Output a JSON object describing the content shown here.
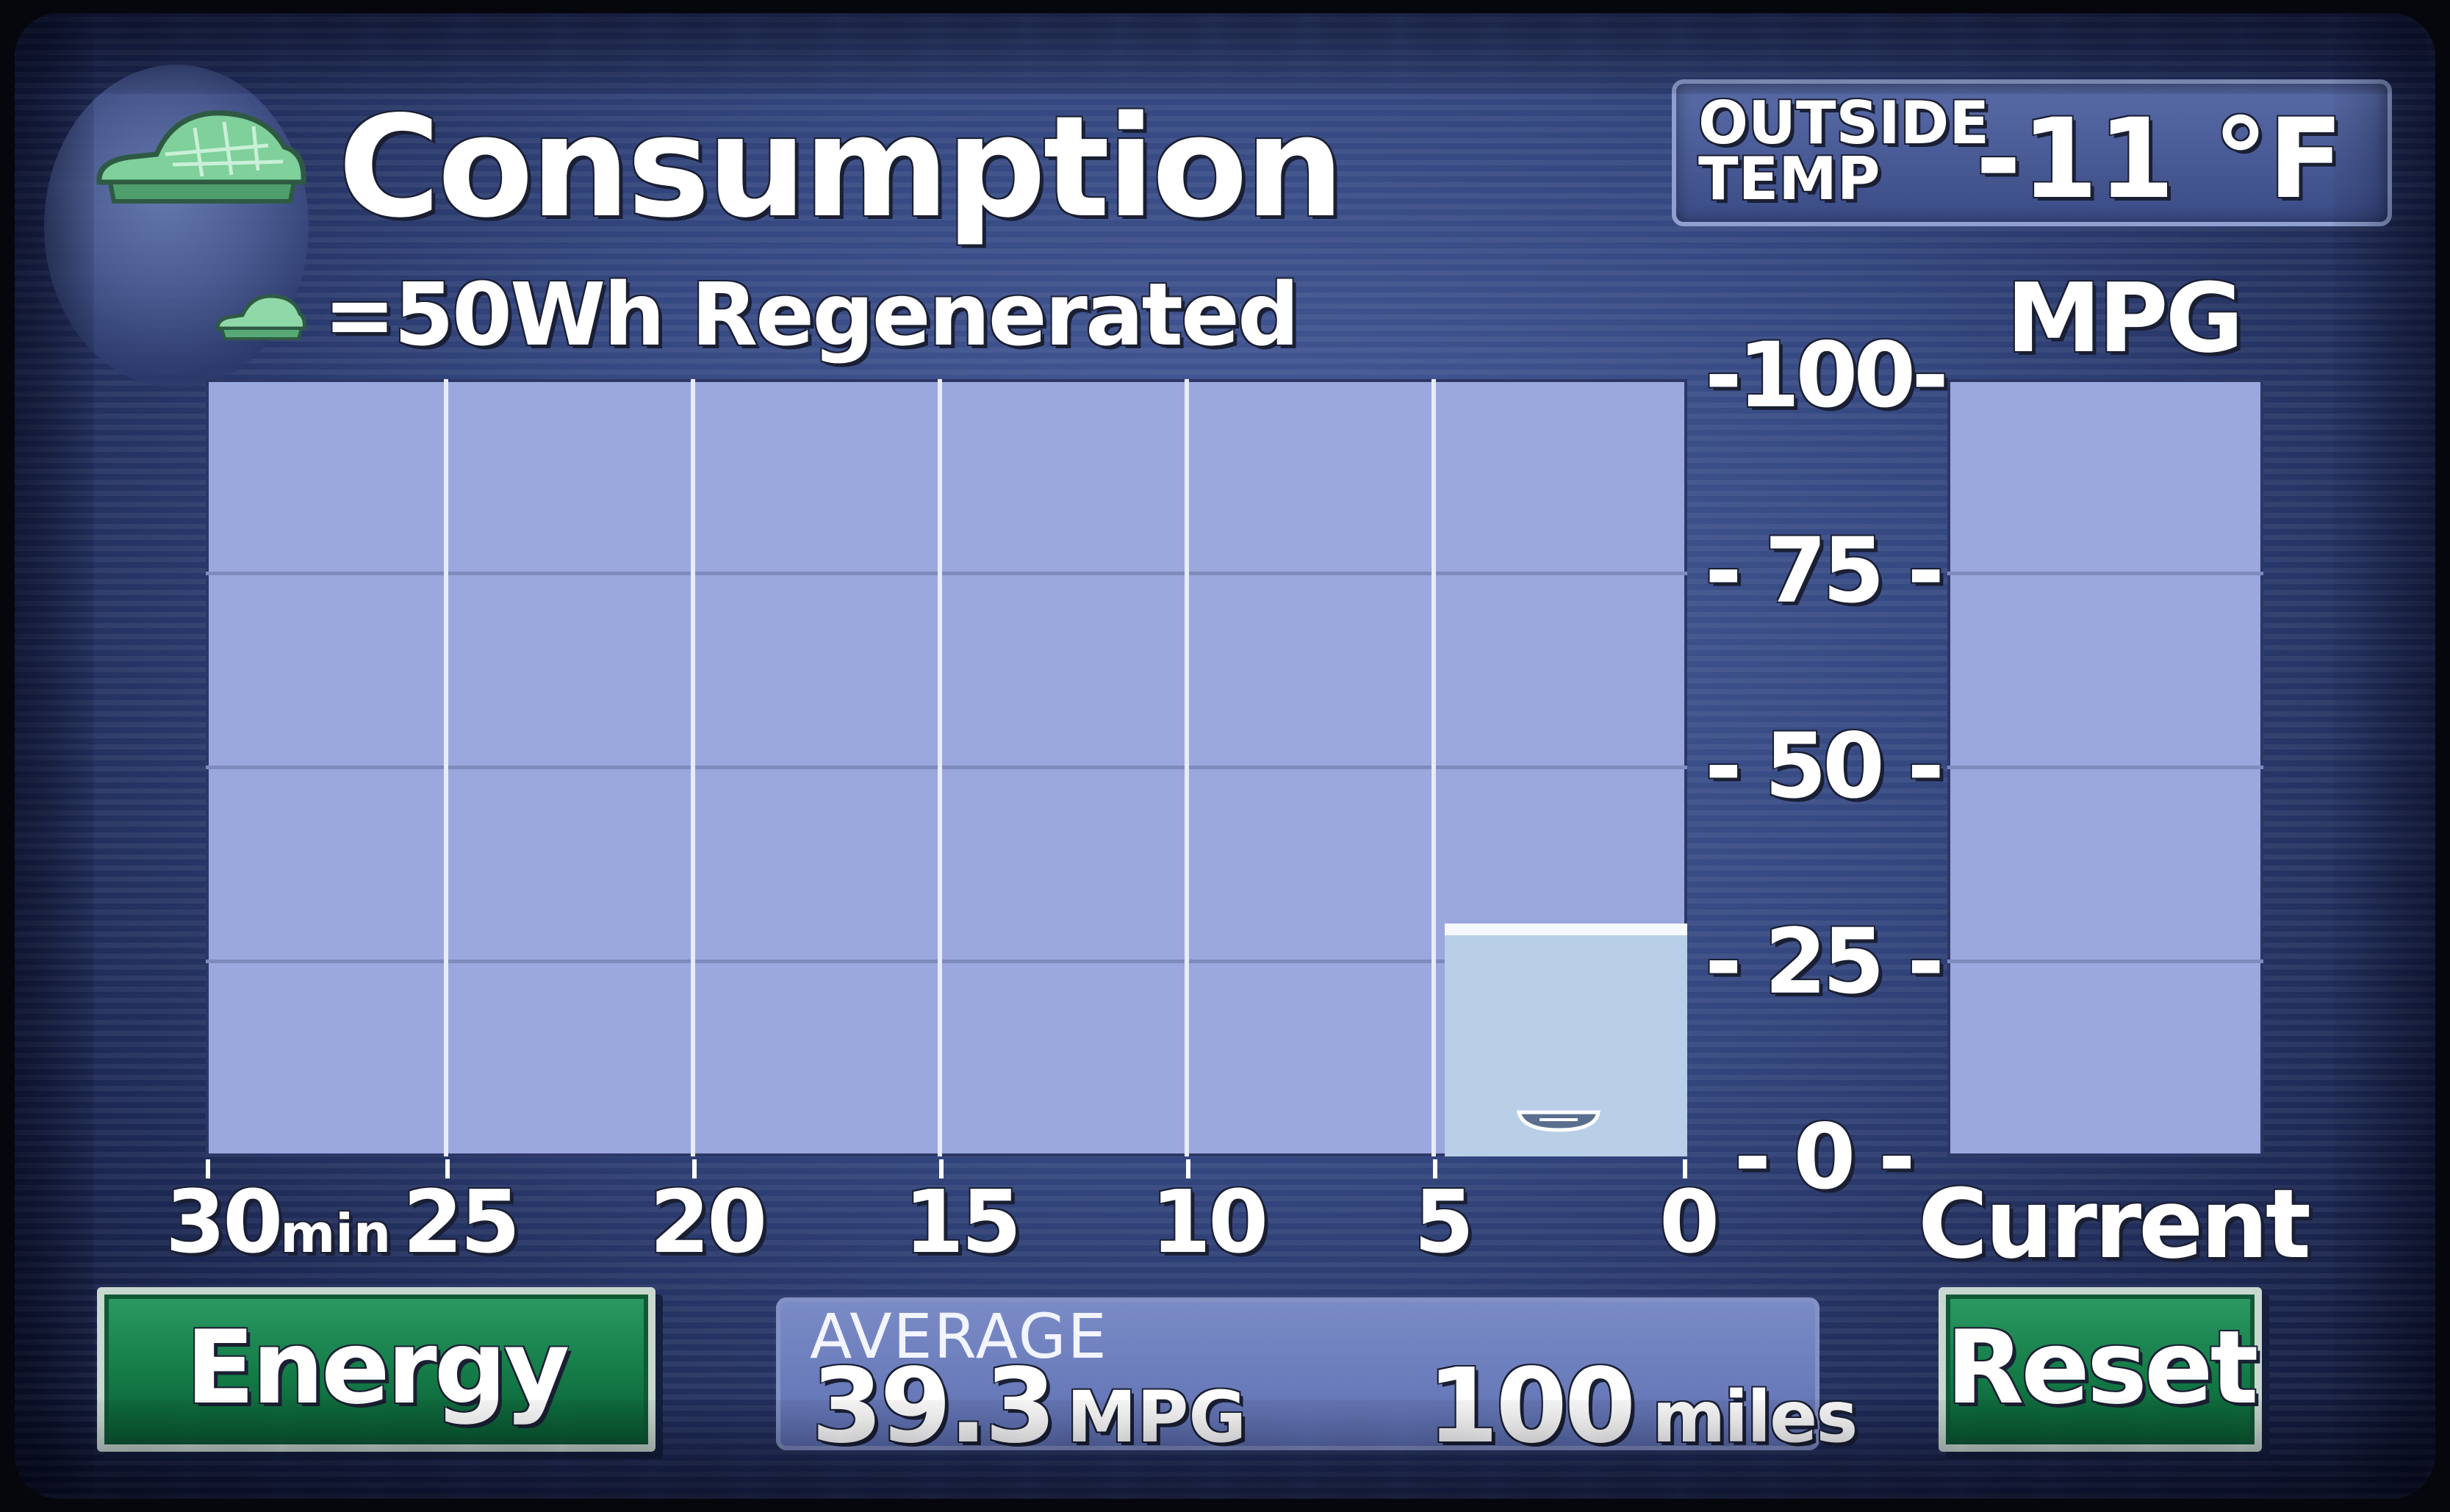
{
  "header": {
    "title": "Consumption",
    "legend_text": "=50Wh Regenerated",
    "icon": "leaf-car-icon"
  },
  "outside_temp": {
    "label": "OUTSIDE\nTEMP",
    "value": "-11 °F"
  },
  "mpg_axis": {
    "label": "MPG",
    "ticks": [
      "-100-",
      "- 75 -",
      "- 50 -",
      "- 25 -",
      "- 0 -"
    ]
  },
  "time_axis": {
    "ticks": [
      "30",
      "25",
      "20",
      "15",
      "10",
      "5",
      "0"
    ],
    "unit": "min"
  },
  "current_label": "Current",
  "buttons": {
    "energy": "Energy",
    "reset": "Reset"
  },
  "average": {
    "label": "AVERAGE",
    "mpg_value": "39.3",
    "mpg_unit": "MPG",
    "distance_value": "100",
    "distance_unit": "miles"
  },
  "colors": {
    "chart_bg": "#9ba8dd",
    "bar_fill": "#b9cfe8",
    "button_green": "#137a46",
    "leaf_green": "#6fc28a"
  },
  "chart_data": {
    "type": "bar",
    "categories": [
      "30-25 min",
      "25-20 min",
      "20-15 min",
      "15-10 min",
      "10-5 min",
      "5-0 min"
    ],
    "series": [
      {
        "name": "",
        "values": [
          null,
          null,
          null,
          null,
          null,
          30
        ]
      }
    ],
    "current_mpg": null,
    "regenerated_units": [
      0,
      0,
      0,
      0,
      0,
      1
    ],
    "ylabel": "MPG",
    "ylim": [
      0,
      100
    ],
    "yticks": [
      0,
      25,
      50,
      75,
      100
    ],
    "xticks": [
      30,
      25,
      20,
      15,
      10,
      5,
      0
    ],
    "grid": true
  }
}
